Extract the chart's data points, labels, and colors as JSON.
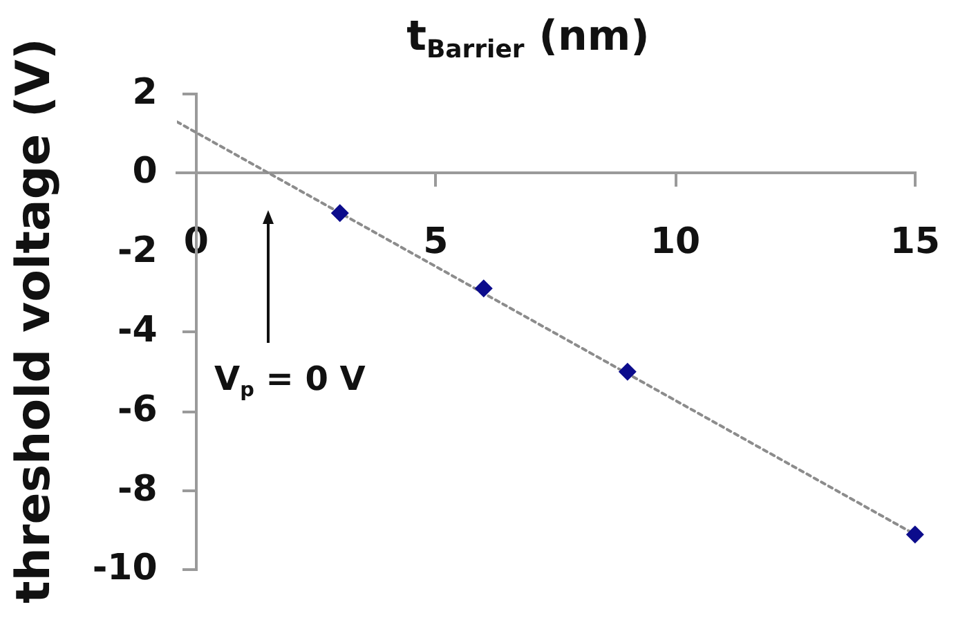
{
  "chart_data": {
    "type": "scatter",
    "xlabel": "t$_{Barrier}$ (nm)",
    "ylabel": "threshold voltage (V)",
    "series": [
      {
        "x": [
          3,
          6,
          9,
          15
        ],
        "values": [
          -1,
          -2.9,
          -5,
          -9.1
        ],
        "color": "#0c0c8c",
        "marker": "diamond"
      },
      {
        "type": "line",
        "x": [
          -0.4,
          15
        ],
        "values": [
          1.3,
          -9.1
        ],
        "color": "#8c8c8c",
        "line_style": "dotted"
      }
    ],
    "xlim": [
      -0.4,
      15
    ],
    "ylim": [
      -10,
      2
    ],
    "xticks": [
      0,
      5,
      10,
      15
    ],
    "yticks": [
      -10,
      -8,
      -6,
      -4,
      -2,
      0,
      2
    ],
    "annotations": [
      "V$_{p}$ = 0 V"
    ]
  }
}
